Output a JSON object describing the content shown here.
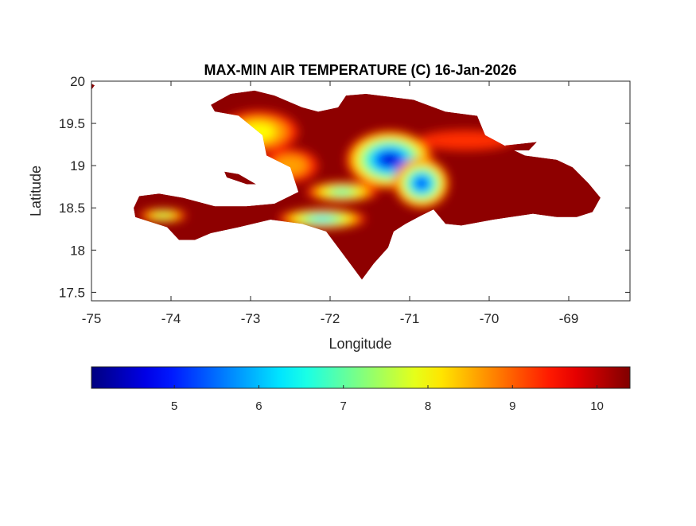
{
  "chart_data": {
    "type": "heatmap",
    "title": "MAX-MIN AIR TEMPERATURE (C) 16-Jan-2026",
    "xlabel": "Longitude",
    "ylabel": "Latitude",
    "xlim": [
      -75,
      -68.23
    ],
    "ylim": [
      17.4,
      20.0
    ],
    "xticks": [
      -75,
      -74,
      -73,
      -72,
      -71,
      -70,
      -69
    ],
    "yticks": [
      17.5,
      18,
      18.5,
      19,
      19.5,
      20
    ],
    "grid": false,
    "colormap": "jet",
    "colorbar": {
      "location": "bottom",
      "range": [
        4.02,
        10.39
      ],
      "ticks": [
        5,
        6,
        7,
        8,
        9,
        10
      ]
    },
    "background_value": 10.3,
    "land_polygons": [
      [
        [
          -73.5,
          19.72
        ],
        [
          -73.25,
          19.85
        ],
        [
          -72.95,
          19.89
        ],
        [
          -72.7,
          19.83
        ],
        [
          -72.35,
          19.69
        ],
        [
          -72.15,
          19.64
        ],
        [
          -71.9,
          19.69
        ],
        [
          -71.8,
          19.83
        ],
        [
          -71.55,
          19.85
        ],
        [
          -70.95,
          19.78
        ],
        [
          -70.55,
          19.64
        ],
        [
          -70.15,
          19.59
        ],
        [
          -70.05,
          19.36
        ],
        [
          -69.75,
          19.21
        ],
        [
          -69.55,
          19.12
        ],
        [
          -69.15,
          19.07
        ],
        [
          -68.95,
          18.98
        ],
        [
          -68.75,
          18.79
        ],
        [
          -68.6,
          18.62
        ],
        [
          -68.7,
          18.45
        ],
        [
          -68.9,
          18.39
        ],
        [
          -69.15,
          18.39
        ],
        [
          -69.45,
          18.43
        ],
        [
          -69.95,
          18.36
        ],
        [
          -70.35,
          18.29
        ],
        [
          -70.55,
          18.31
        ],
        [
          -70.7,
          18.48
        ],
        [
          -70.85,
          18.41
        ],
        [
          -71.05,
          18.31
        ],
        [
          -71.2,
          18.22
        ],
        [
          -71.27,
          18.03
        ],
        [
          -71.45,
          17.84
        ],
        [
          -71.6,
          17.65
        ],
        [
          -71.75,
          17.84
        ],
        [
          -71.9,
          18.03
        ],
        [
          -72.05,
          18.22
        ],
        [
          -72.35,
          18.31
        ],
        [
          -72.75,
          18.36
        ],
        [
          -73.15,
          18.27
        ],
        [
          -73.5,
          18.2
        ],
        [
          -73.7,
          18.12
        ],
        [
          -73.9,
          18.12
        ],
        [
          -74.05,
          18.27
        ],
        [
          -74.25,
          18.33
        ],
        [
          -74.45,
          18.39
        ],
        [
          -74.47,
          18.5
        ],
        [
          -74.4,
          18.64
        ],
        [
          -74.15,
          18.67
        ],
        [
          -73.85,
          18.62
        ],
        [
          -73.45,
          18.52
        ],
        [
          -73.05,
          18.52
        ],
        [
          -72.7,
          18.55
        ],
        [
          -72.4,
          18.69
        ],
        [
          -72.5,
          18.98
        ],
        [
          -72.8,
          19.12
        ],
        [
          -72.85,
          19.36
        ],
        [
          -73.15,
          19.59
        ],
        [
          -73.45,
          19.64
        ]
      ],
      [
        [
          -73.33,
          18.93
        ],
        [
          -73.15,
          18.9
        ],
        [
          -72.93,
          18.78
        ],
        [
          -73.05,
          18.78
        ],
        [
          -73.3,
          18.86
        ]
      ],
      [
        [
          -69.8,
          19.24
        ],
        [
          -69.4,
          19.28
        ],
        [
          -69.5,
          19.18
        ],
        [
          -69.75,
          19.18
        ]
      ]
    ],
    "cool_features": [
      {
        "lon": -71.25,
        "lat": 19.07,
        "min_value": 4.5,
        "rlon": 0.55,
        "rlat": 0.35
      },
      {
        "lon": -70.85,
        "lat": 18.79,
        "min_value": 5.0,
        "rlon": 0.35,
        "rlat": 0.3
      },
      {
        "lon": -71.85,
        "lat": 18.69,
        "min_value": 6.5,
        "rlon": 0.45,
        "rlat": 0.12
      },
      {
        "lon": -72.1,
        "lat": 18.37,
        "min_value": 6.0,
        "rlon": 0.55,
        "rlat": 0.12
      },
      {
        "lon": -74.1,
        "lat": 18.41,
        "min_value": 7.0,
        "rlon": 0.3,
        "rlat": 0.08
      },
      {
        "lon": -72.9,
        "lat": 19.4,
        "min_value": 8.0,
        "rlon": 0.5,
        "rlat": 0.25
      },
      {
        "lon": -72.5,
        "lat": 19.0,
        "min_value": 8.2,
        "rlon": 0.35,
        "rlat": 0.2
      },
      {
        "lon": -70.3,
        "lat": 19.3,
        "min_value": 8.8,
        "rlon": 0.6,
        "rlat": 0.12
      }
    ]
  }
}
